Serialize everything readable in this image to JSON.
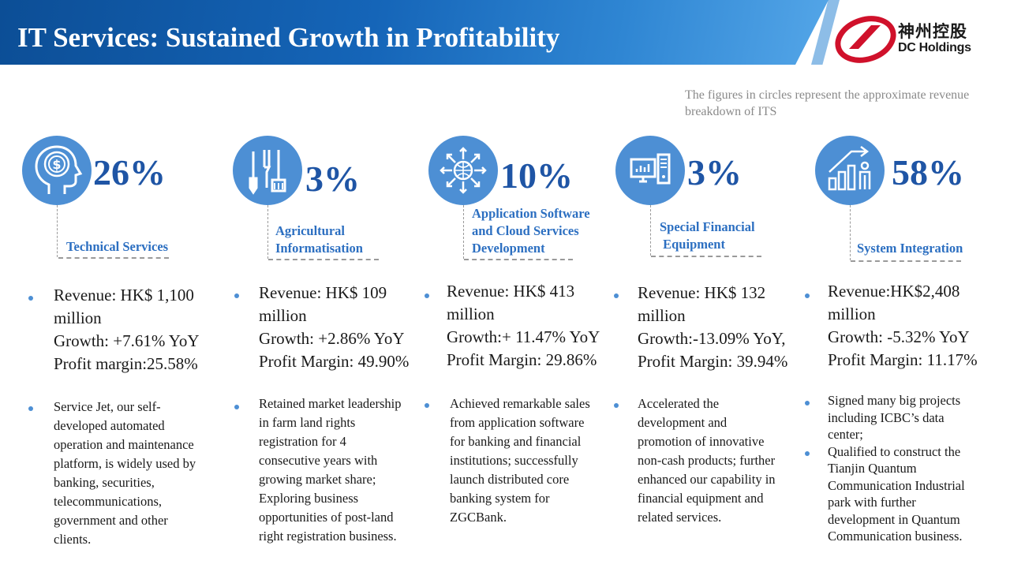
{
  "header": {
    "title": "IT Services: Sustained Growth in Profitability"
  },
  "logo": {
    "name_cn": "神州控股",
    "name_en": "DC Holdings",
    "color": "#d0112b"
  },
  "note": {
    "text": "The figures in circles represent the approximate revenue breakdown of ITS"
  },
  "colors": {
    "accent": "#4d8fd4",
    "percent": "#1f55a5",
    "label": "#2c6fc1"
  },
  "segments": [
    {
      "icon": "money-head-icon",
      "percent": "26%",
      "label_lines": [
        "Technical Services"
      ],
      "revenue_lines": [
        "Revenue:  HK$ 1,100",
        "million"
      ],
      "growth": "Growth: +7.61% YoY",
      "margin": "Profit margin:25.58%",
      "desc_lines": [
        "Service Jet, our self-",
        "developed automated",
        "operation and maintenance",
        "platform, is widely used by",
        "banking, securities,",
        "telecommunications,",
        "government and other",
        "clients."
      ]
    },
    {
      "icon": "farm-tools-icon",
      "percent": "3%",
      "label_lines": [
        "Agricultural",
        "Informatisation"
      ],
      "revenue_lines": [
        "Revenue:  HK$ 109",
        "million"
      ],
      "growth": "Growth: +2.86% YoY",
      "margin": "Profit Margin: 49.90%",
      "desc_lines": [
        "Retained market leadership",
        "in farm land rights",
        "registration for 4",
        "consecutive years with",
        "growing market share;",
        "Exploring business",
        "opportunities of post-land",
        "right registration business."
      ]
    },
    {
      "icon": "cloud-network-icon",
      "percent": "10%",
      "label_lines": [
        "Application Software",
        "and Cloud Services",
        "Development"
      ],
      "revenue_lines": [
        "Revenue: HK$ 413",
        "million"
      ],
      "growth": "Growth:+ 11.47% YoY",
      "margin": "Profit Margin: 29.86%",
      "desc_lines": [
        "Achieved remarkable sales",
        "from application software",
        "for banking and financial",
        "institutions; successfully",
        "launch distributed core",
        "banking system for",
        "ZGCBank."
      ]
    },
    {
      "icon": "financial-equipment-icon",
      "percent": "3%",
      "label_lines": [
        "Special Financial",
        " Equipment"
      ],
      "revenue_lines": [
        "Revenue: HK$ 132",
        "million"
      ],
      "growth": "Growth:-13.09%  YoY,",
      "margin": "Profit Margin: 39.94%",
      "desc_lines": [
        "Accelerated the",
        "development and",
        "promotion of innovative",
        "non-cash products; further",
        "enhanced our capability in",
        "financial equipment and",
        "related services."
      ]
    },
    {
      "icon": "growth-person-icon",
      "percent": "58%",
      "label_lines": [
        "System Integration"
      ],
      "revenue_lines": [
        "Revenue:HK$2,408",
        "million"
      ],
      "growth": "Growth: -5.32% YoY",
      "margin": "Profit Margin: 11.17%",
      "desc_lines": [
        "Signed many big projects",
        "including ICBC’s data",
        "center;",
        "Qualified to construct the",
        "Tianjin Quantum",
        "Communication Industrial",
        "park with further",
        "development in Quantum",
        "Communication business."
      ]
    }
  ]
}
